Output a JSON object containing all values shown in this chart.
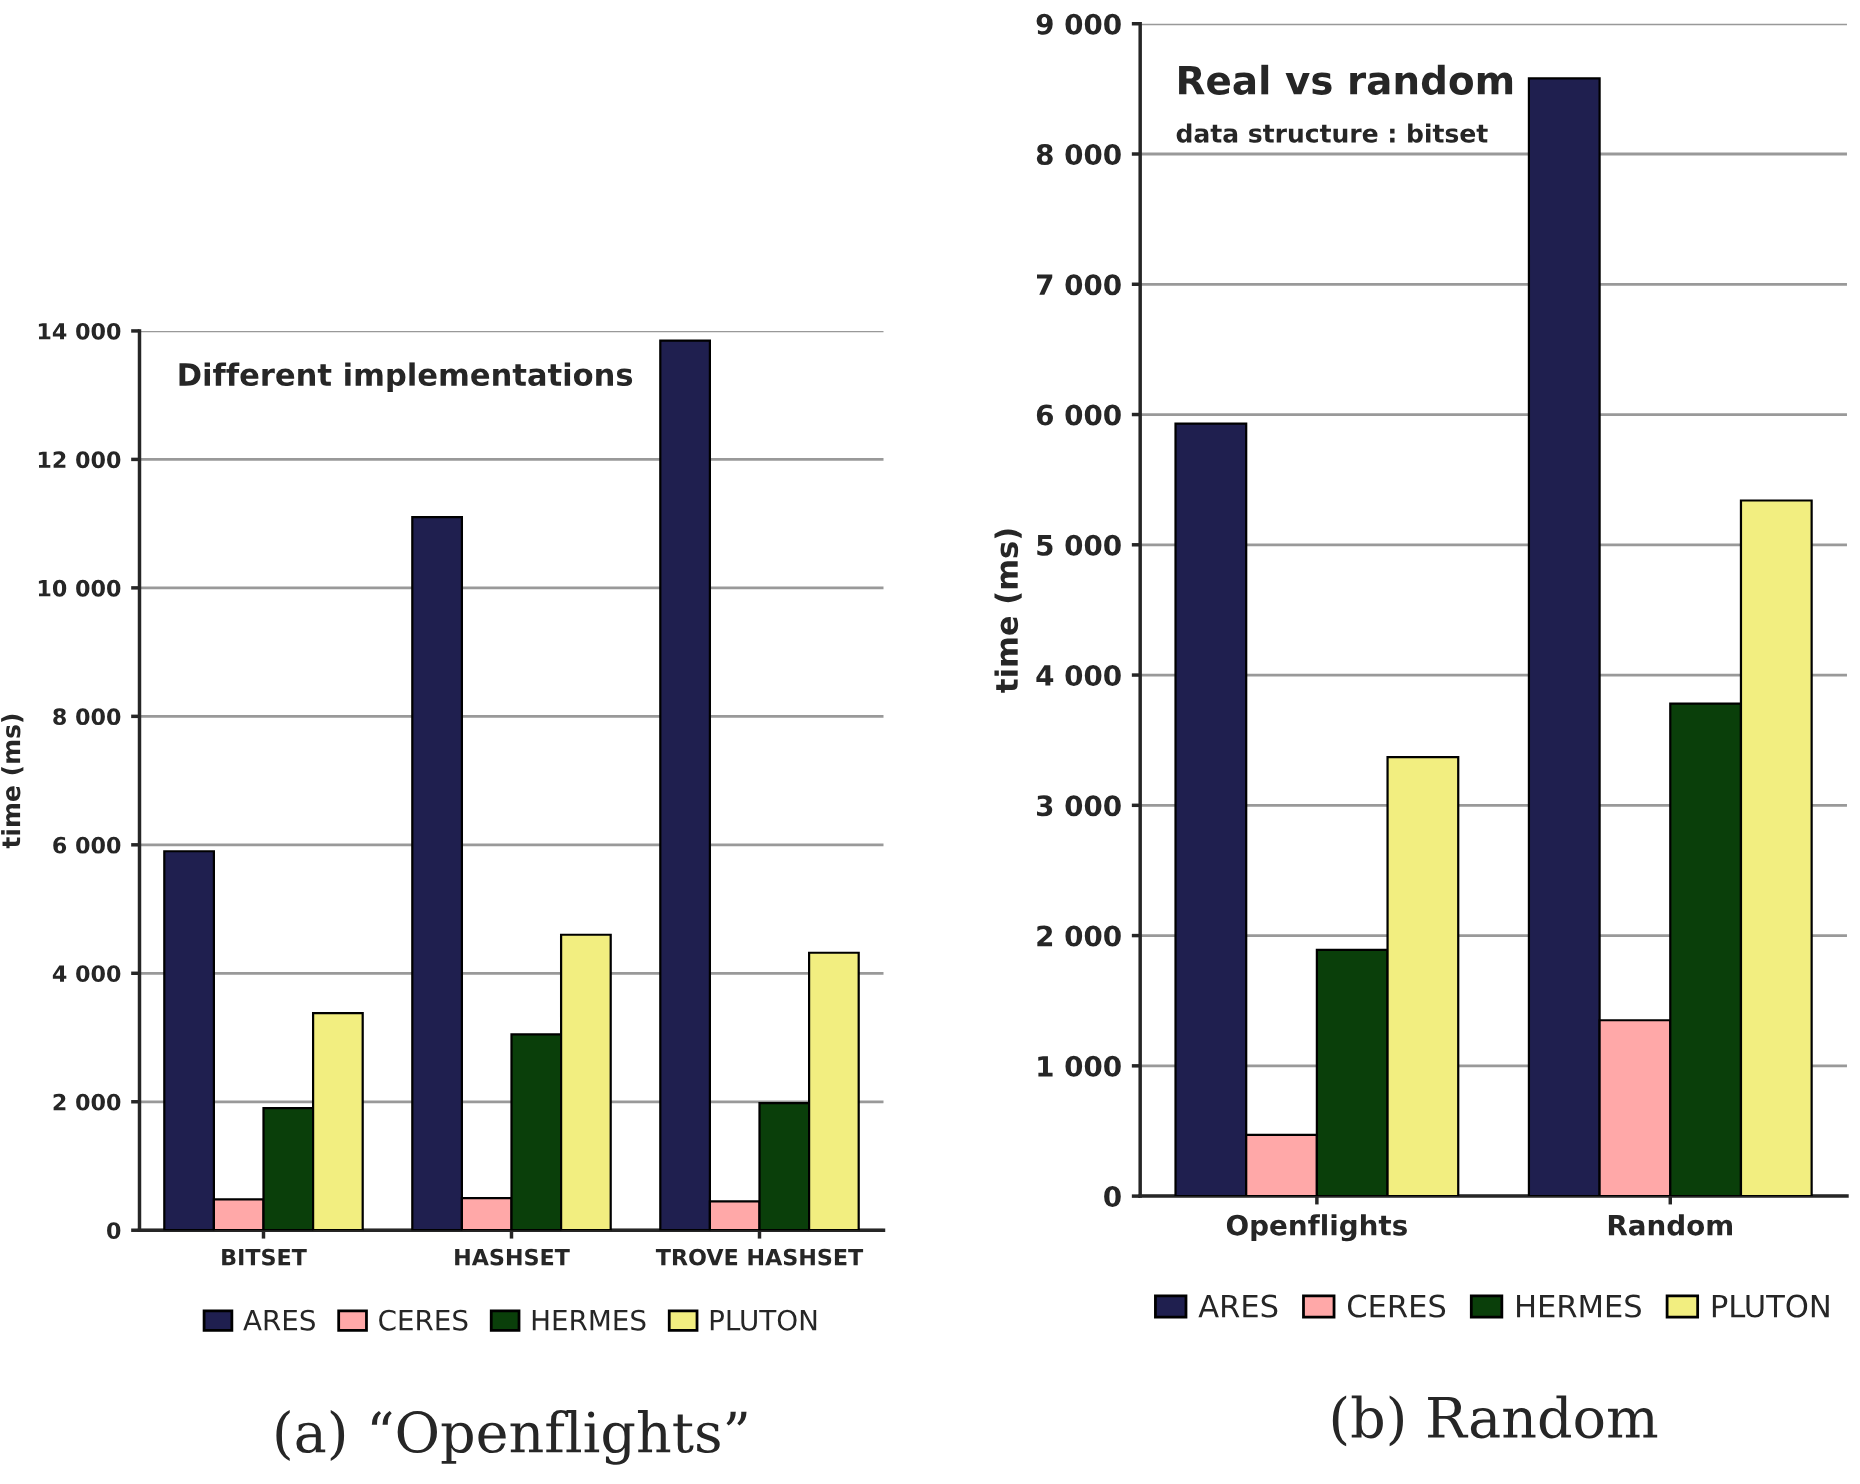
{
  "chart_data": [
    {
      "type": "bar",
      "title": "Different implementations",
      "ylabel": "time (ms)",
      "categories": [
        "BITSET",
        "HASHSET",
        "TROVE HASHSET"
      ],
      "series": [
        {
          "name": "ARES",
          "color": "#1f1f4f",
          "values": [
            5900,
            11100,
            13850
          ]
        },
        {
          "name": "CERES",
          "color": "#ffa8a8",
          "values": [
            480,
            500,
            450
          ]
        },
        {
          "name": "HERMES",
          "color": "#0a3f0a",
          "values": [
            1900,
            3050,
            1980
          ]
        },
        {
          "name": "PLUTON",
          "color": "#f2ee80",
          "values": [
            3380,
            4600,
            4320
          ]
        }
      ],
      "ylim": [
        0,
        14000
      ],
      "yticks": [
        0,
        {
          "value": 2000,
          "label": "2 000"
        },
        {
          "value": 4000,
          "label": "4 000"
        },
        {
          "value": 6000,
          "label": "6 000"
        },
        {
          "value": 8000,
          "label": "8 000"
        },
        {
          "value": 10000,
          "label": "10 000"
        },
        {
          "value": 12000,
          "label": "12 000"
        },
        {
          "value": 14000,
          "label": "14 000"
        }
      ],
      "grid": "y",
      "legend": "bottom",
      "annotations": [
        "(a) “Openflights”"
      ]
    },
    {
      "type": "bar",
      "title": "Real vs random",
      "subtitle": "data structure : bitset",
      "ylabel": "time (ms)",
      "categories": [
        "Openflights",
        "Random"
      ],
      "series": [
        {
          "name": "ARES",
          "color": "#1f1f4f",
          "values": [
            5930,
            8580
          ]
        },
        {
          "name": "CERES",
          "color": "#ffa8a8",
          "values": [
            470,
            1350
          ]
        },
        {
          "name": "HERMES",
          "color": "#0a3f0a",
          "values": [
            1890,
            3780
          ]
        },
        {
          "name": "PLUTON",
          "color": "#f2ee80",
          "values": [
            3370,
            5340
          ]
        }
      ],
      "ylim": [
        0,
        9000
      ],
      "yticks": [
        0,
        {
          "value": 1000,
          "label": "1 000"
        },
        {
          "value": 2000,
          "label": "2 000"
        },
        {
          "value": 3000,
          "label": "3 000"
        },
        {
          "value": 4000,
          "label": "4 000"
        },
        {
          "value": 5000,
          "label": "5 000"
        },
        {
          "value": 6000,
          "label": "6 000"
        },
        {
          "value": 7000,
          "label": "7 000"
        },
        {
          "value": 8000,
          "label": "8 000"
        },
        {
          "value": 9000,
          "label": "9 000"
        }
      ],
      "grid": "y",
      "legend": "bottom",
      "annotations": [
        "(b) Random"
      ]
    }
  ]
}
